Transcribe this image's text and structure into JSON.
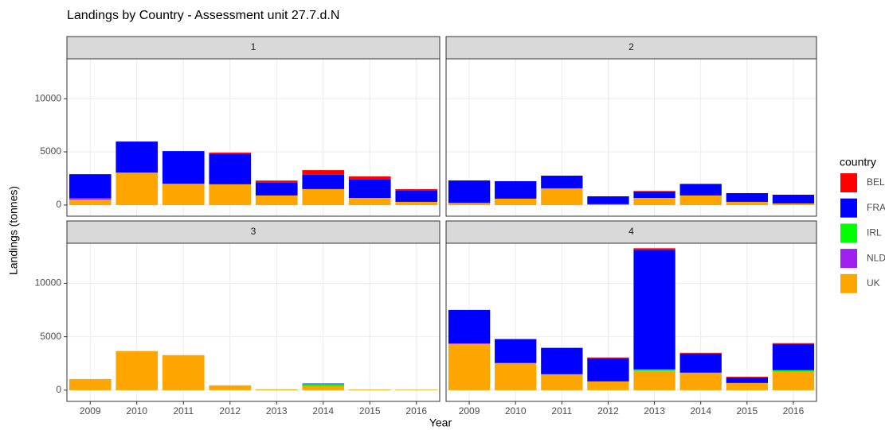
{
  "chart_data": {
    "type": "bar",
    "stacked": true,
    "title": "Landings by Country - Assessment unit 27.7.d.N",
    "x_label": "Year",
    "y_label": "Landings (tonnes)",
    "legend_title": "country",
    "facets": [
      "1",
      "2",
      "3",
      "4"
    ],
    "categories": [
      "2009",
      "2010",
      "2011",
      "2012",
      "2013",
      "2014",
      "2015",
      "2016"
    ],
    "ylim": [
      -1050,
      13750
    ],
    "yticks": [
      0,
      5000,
      10000
    ],
    "grid": true,
    "series": [
      {
        "name": "BEL",
        "color": "#ff0000",
        "values": [
          [
            0,
            0,
            0,
            150,
            210,
            440,
            300,
            150
          ],
          [
            0,
            0,
            0,
            0,
            50,
            60,
            0,
            0
          ],
          [
            0,
            0,
            0,
            0,
            0,
            0,
            0,
            0
          ],
          [
            0,
            0,
            0,
            70,
            150,
            70,
            70,
            70
          ]
        ]
      },
      {
        "name": "FRA",
        "color": "#0000ff",
        "values": [
          [
            2250,
            2920,
            3070,
            2830,
            1190,
            1340,
            1720,
            1040
          ],
          [
            2110,
            1640,
            1190,
            740,
            600,
            1040,
            820,
            820
          ],
          [
            0,
            0,
            0,
            0,
            0,
            50,
            0,
            0
          ],
          [
            3130,
            2240,
            2470,
            2170,
            11190,
            1790,
            520,
            2460
          ]
        ]
      },
      {
        "name": "IRL",
        "color": "#00ff00",
        "values": [
          [
            0,
            0,
            0,
            0,
            0,
            0,
            0,
            0
          ],
          [
            0,
            0,
            0,
            0,
            0,
            0,
            0,
            0
          ],
          [
            0,
            0,
            0,
            0,
            0,
            200,
            0,
            0
          ],
          [
            0,
            0,
            0,
            0,
            150,
            0,
            0,
            150
          ]
        ]
      },
      {
        "name": "NLD",
        "color": "#a020f0",
        "values": [
          [
            150,
            0,
            0,
            0,
            0,
            0,
            0,
            0
          ],
          [
            0,
            0,
            0,
            0,
            0,
            0,
            0,
            0
          ],
          [
            0,
            0,
            0,
            0,
            0,
            0,
            0,
            0
          ],
          [
            50,
            0,
            0,
            0,
            0,
            0,
            0,
            0
          ]
        ]
      },
      {
        "name": "UK",
        "color": "#ffa500",
        "values": [
          [
            500,
            3050,
            2000,
            1950,
            900,
            1500,
            670,
            300
          ],
          [
            200,
            600,
            1570,
            80,
            670,
            900,
            300,
            150
          ],
          [
            1040,
            3660,
            3280,
            450,
            80,
            370,
            60,
            50
          ],
          [
            4330,
            2540,
            1490,
            820,
            1790,
            1640,
            670,
            1720
          ]
        ]
      }
    ]
  }
}
